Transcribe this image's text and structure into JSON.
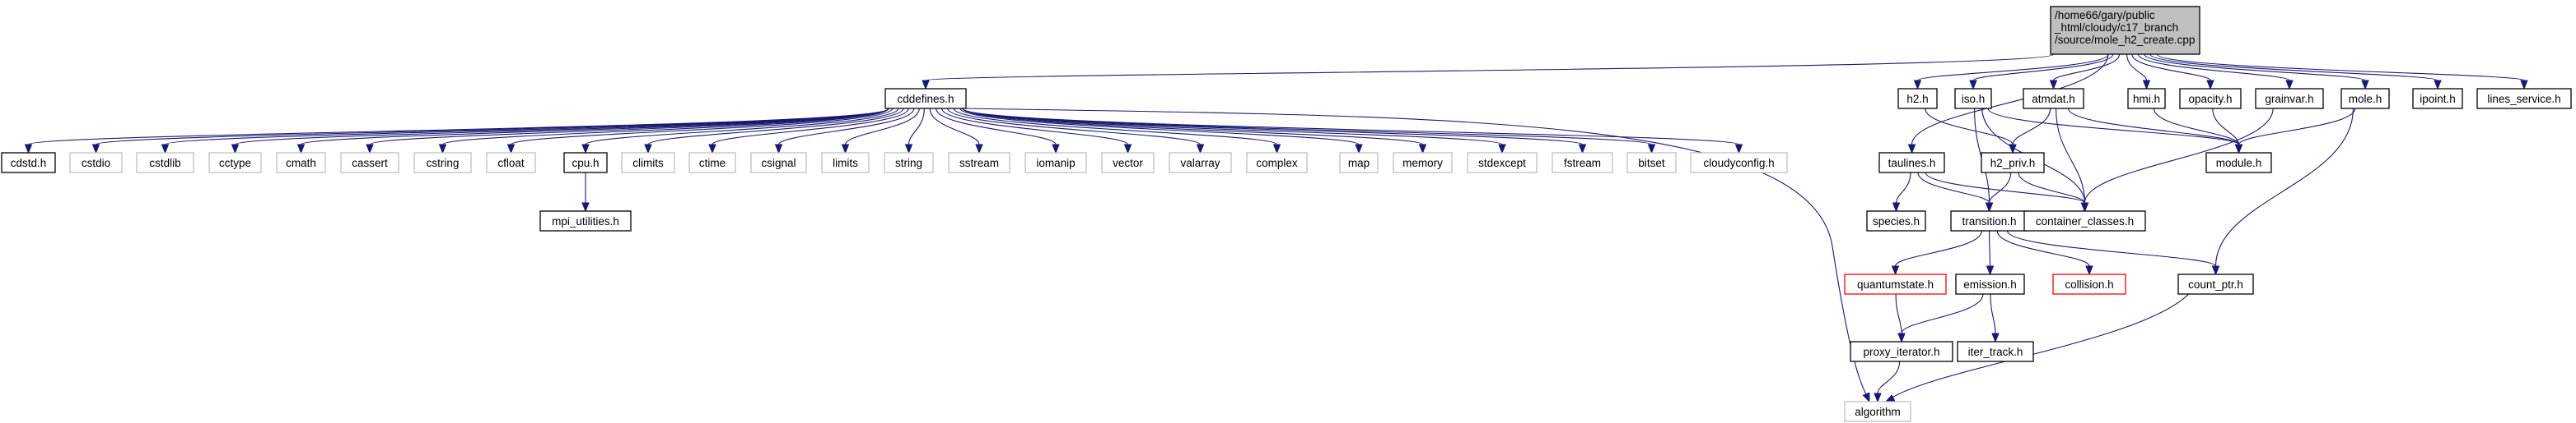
{
  "colors": {
    "edge": "#191970",
    "border_normal": "#000000",
    "border_system": "#bfbfbf",
    "border_truncated": "#ff0000",
    "fill_normal": "#ffffff",
    "fill_root": "#bfbfbf"
  },
  "nodes": [
    {
      "id": "root",
      "lines": [
        "/home66/gary/public",
        "_html/cloudy/c17_branch",
        "/source/mole_h2_create.cpp"
      ],
      "style": "root"
    },
    {
      "id": "cddefines",
      "lines": [
        "cddefines.h"
      ],
      "style": "normal"
    },
    {
      "id": "cdstd",
      "lines": [
        "cdstd.h"
      ],
      "style": "normal"
    },
    {
      "id": "cstdio",
      "lines": [
        "cstdio"
      ],
      "style": "system"
    },
    {
      "id": "cstdlib",
      "lines": [
        "cstdlib"
      ],
      "style": "system"
    },
    {
      "id": "cctype",
      "lines": [
        "cctype"
      ],
      "style": "system"
    },
    {
      "id": "cmath",
      "lines": [
        "cmath"
      ],
      "style": "system"
    },
    {
      "id": "cassert",
      "lines": [
        "cassert"
      ],
      "style": "system"
    },
    {
      "id": "cstring",
      "lines": [
        "cstring"
      ],
      "style": "system"
    },
    {
      "id": "cfloat",
      "lines": [
        "cfloat"
      ],
      "style": "system"
    },
    {
      "id": "cpu",
      "lines": [
        "cpu.h"
      ],
      "style": "normal"
    },
    {
      "id": "climits",
      "lines": [
        "climits"
      ],
      "style": "system"
    },
    {
      "id": "ctime",
      "lines": [
        "ctime"
      ],
      "style": "system"
    },
    {
      "id": "csignal",
      "lines": [
        "csignal"
      ],
      "style": "system"
    },
    {
      "id": "limits",
      "lines": [
        "limits"
      ],
      "style": "system"
    },
    {
      "id": "string",
      "lines": [
        "string"
      ],
      "style": "system"
    },
    {
      "id": "sstream",
      "lines": [
        "sstream"
      ],
      "style": "system"
    },
    {
      "id": "iomanip",
      "lines": [
        "iomanip"
      ],
      "style": "system"
    },
    {
      "id": "vector",
      "lines": [
        "vector"
      ],
      "style": "system"
    },
    {
      "id": "valarray",
      "lines": [
        "valarray"
      ],
      "style": "system"
    },
    {
      "id": "complex",
      "lines": [
        "complex"
      ],
      "style": "system"
    },
    {
      "id": "map",
      "lines": [
        "map"
      ],
      "style": "system"
    },
    {
      "id": "memory",
      "lines": [
        "memory"
      ],
      "style": "system"
    },
    {
      "id": "stdexcept",
      "lines": [
        "stdexcept"
      ],
      "style": "system"
    },
    {
      "id": "fstream",
      "lines": [
        "fstream"
      ],
      "style": "system"
    },
    {
      "id": "bitset",
      "lines": [
        "bitset"
      ],
      "style": "system"
    },
    {
      "id": "cloudyconfig",
      "lines": [
        "cloudyconfig.h"
      ],
      "style": "system"
    },
    {
      "id": "mpi_utilities",
      "lines": [
        "mpi_utilities.h"
      ],
      "style": "normal"
    },
    {
      "id": "algorithm",
      "lines": [
        "algorithm"
      ],
      "style": "system"
    },
    {
      "id": "h2",
      "lines": [
        "h2.h"
      ],
      "style": "normal"
    },
    {
      "id": "iso",
      "lines": [
        "iso.h"
      ],
      "style": "normal"
    },
    {
      "id": "atmdat",
      "lines": [
        "atmdat.h"
      ],
      "style": "normal"
    },
    {
      "id": "hmi",
      "lines": [
        "hmi.h"
      ],
      "style": "normal"
    },
    {
      "id": "opacity",
      "lines": [
        "opacity.h"
      ],
      "style": "normal"
    },
    {
      "id": "grainvar",
      "lines": [
        "grainvar.h"
      ],
      "style": "normal"
    },
    {
      "id": "mole",
      "lines": [
        "mole.h"
      ],
      "style": "normal"
    },
    {
      "id": "ipoint",
      "lines": [
        "ipoint.h"
      ],
      "style": "normal"
    },
    {
      "id": "lines_service",
      "lines": [
        "lines_service.h"
      ],
      "style": "normal"
    },
    {
      "id": "taulines",
      "lines": [
        "taulines.h"
      ],
      "style": "normal"
    },
    {
      "id": "h2_priv",
      "lines": [
        "h2_priv.h"
      ],
      "style": "normal"
    },
    {
      "id": "module",
      "lines": [
        "module.h"
      ],
      "style": "normal"
    },
    {
      "id": "species",
      "lines": [
        "species.h"
      ],
      "style": "normal"
    },
    {
      "id": "transition",
      "lines": [
        "transition.h"
      ],
      "style": "normal"
    },
    {
      "id": "container_classes",
      "lines": [
        "container_classes.h"
      ],
      "style": "normal"
    },
    {
      "id": "quantumstate",
      "lines": [
        "quantumstate.h"
      ],
      "style": "truncated"
    },
    {
      "id": "emission",
      "lines": [
        "emission.h"
      ],
      "style": "normal"
    },
    {
      "id": "collision",
      "lines": [
        "collision.h"
      ],
      "style": "truncated"
    },
    {
      "id": "count_ptr",
      "lines": [
        "count_ptr.h"
      ],
      "style": "normal"
    },
    {
      "id": "proxy_iterator",
      "lines": [
        "proxy_iterator.h"
      ],
      "style": "normal"
    },
    {
      "id": "iter_track",
      "lines": [
        "iter_track.h"
      ],
      "style": "normal"
    }
  ],
  "edges": [
    [
      "root",
      "cddefines"
    ],
    [
      "root",
      "h2"
    ],
    [
      "root",
      "iso"
    ],
    [
      "root",
      "atmdat"
    ],
    [
      "root",
      "hmi"
    ],
    [
      "root",
      "opacity"
    ],
    [
      "root",
      "grainvar"
    ],
    [
      "root",
      "mole"
    ],
    [
      "root",
      "ipoint"
    ],
    [
      "root",
      "lines_service"
    ],
    [
      "root",
      "taulines"
    ],
    [
      "cddefines",
      "cdstd"
    ],
    [
      "cddefines",
      "cstdio"
    ],
    [
      "cddefines",
      "cstdlib"
    ],
    [
      "cddefines",
      "cctype"
    ],
    [
      "cddefines",
      "cmath"
    ],
    [
      "cddefines",
      "cassert"
    ],
    [
      "cddefines",
      "cstring"
    ],
    [
      "cddefines",
      "cfloat"
    ],
    [
      "cddefines",
      "cpu"
    ],
    [
      "cddefines",
      "climits"
    ],
    [
      "cddefines",
      "ctime"
    ],
    [
      "cddefines",
      "csignal"
    ],
    [
      "cddefines",
      "limits"
    ],
    [
      "cddefines",
      "string"
    ],
    [
      "cddefines",
      "sstream"
    ],
    [
      "cddefines",
      "iomanip"
    ],
    [
      "cddefines",
      "vector"
    ],
    [
      "cddefines",
      "valarray"
    ],
    [
      "cddefines",
      "complex"
    ],
    [
      "cddefines",
      "map"
    ],
    [
      "cddefines",
      "memory"
    ],
    [
      "cddefines",
      "stdexcept"
    ],
    [
      "cddefines",
      "fstream"
    ],
    [
      "cddefines",
      "bitset"
    ],
    [
      "cddefines",
      "cloudyconfig"
    ],
    [
      "cddefines",
      "algorithm"
    ],
    [
      "cpu",
      "mpi_utilities"
    ],
    [
      "h2",
      "h2_priv"
    ],
    [
      "iso",
      "module"
    ],
    [
      "iso",
      "transition"
    ],
    [
      "iso",
      "container_classes"
    ],
    [
      "atmdat",
      "h2_priv"
    ],
    [
      "atmdat",
      "module"
    ],
    [
      "atmdat",
      "container_classes"
    ],
    [
      "hmi",
      "module"
    ],
    [
      "opacity",
      "module"
    ],
    [
      "grainvar",
      "container_classes"
    ],
    [
      "mole",
      "module"
    ],
    [
      "mole",
      "count_ptr"
    ],
    [
      "taulines",
      "species"
    ],
    [
      "taulines",
      "transition"
    ],
    [
      "taulines",
      "container_classes"
    ],
    [
      "h2_priv",
      "transition"
    ],
    [
      "h2_priv",
      "container_classes"
    ],
    [
      "transition",
      "quantumstate"
    ],
    [
      "transition",
      "emission"
    ],
    [
      "transition",
      "collision"
    ],
    [
      "transition",
      "count_ptr"
    ],
    [
      "quantumstate",
      "proxy_iterator"
    ],
    [
      "emission",
      "proxy_iterator"
    ],
    [
      "emission",
      "iter_track"
    ],
    [
      "proxy_iterator",
      "algorithm"
    ],
    [
      "count_ptr",
      "algorithm"
    ]
  ]
}
